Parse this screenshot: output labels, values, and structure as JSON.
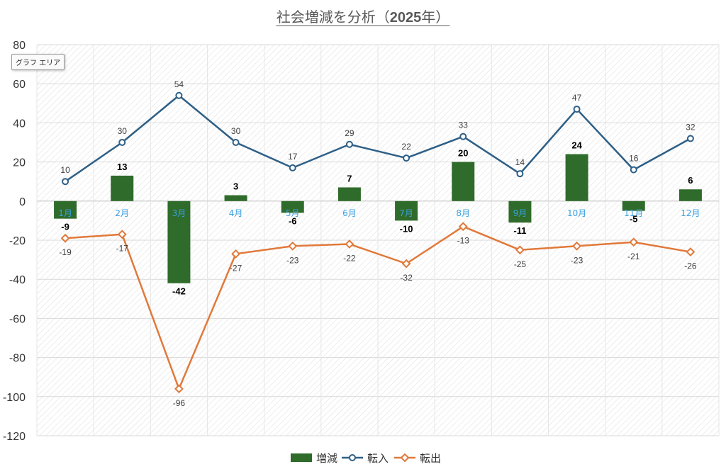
{
  "tooltip": "グラフ エリア",
  "chart_data": {
    "type": "bar",
    "title": "社会増減を分析（2025年）",
    "title_prefix": "社会増減を分析（",
    "title_year": "2025",
    "title_suffix": "年）",
    "categories": [
      "1月",
      "2月",
      "3月",
      "4月",
      "5月",
      "6月",
      "7月",
      "8月",
      "9月",
      "10月",
      "11月",
      "12月"
    ],
    "series": [
      {
        "name": "増減",
        "type": "bar",
        "color": "#2f6b2a",
        "values": [
          -9,
          13,
          -42,
          3,
          -6,
          7,
          -10,
          20,
          -11,
          24,
          -5,
          6
        ]
      },
      {
        "name": "転入",
        "type": "line",
        "color": "#2e5f86",
        "marker": "circle",
        "values": [
          10,
          30,
          54,
          30,
          17,
          29,
          22,
          33,
          14,
          47,
          16,
          32
        ]
      },
      {
        "name": "転出",
        "type": "line",
        "color": "#e0793a",
        "marker": "diamond",
        "values": [
          -19,
          -17,
          -96,
          -27,
          -23,
          -22,
          -32,
          -13,
          -25,
          -23,
          -21,
          -26
        ]
      }
    ],
    "ylim": [
      -120,
      80
    ],
    "yticks": [
      80,
      60,
      40,
      20,
      0,
      -20,
      -40,
      -60,
      -80,
      -100,
      -120
    ],
    "grid": true,
    "legend": "bottom",
    "xlabel": "",
    "ylabel": ""
  }
}
